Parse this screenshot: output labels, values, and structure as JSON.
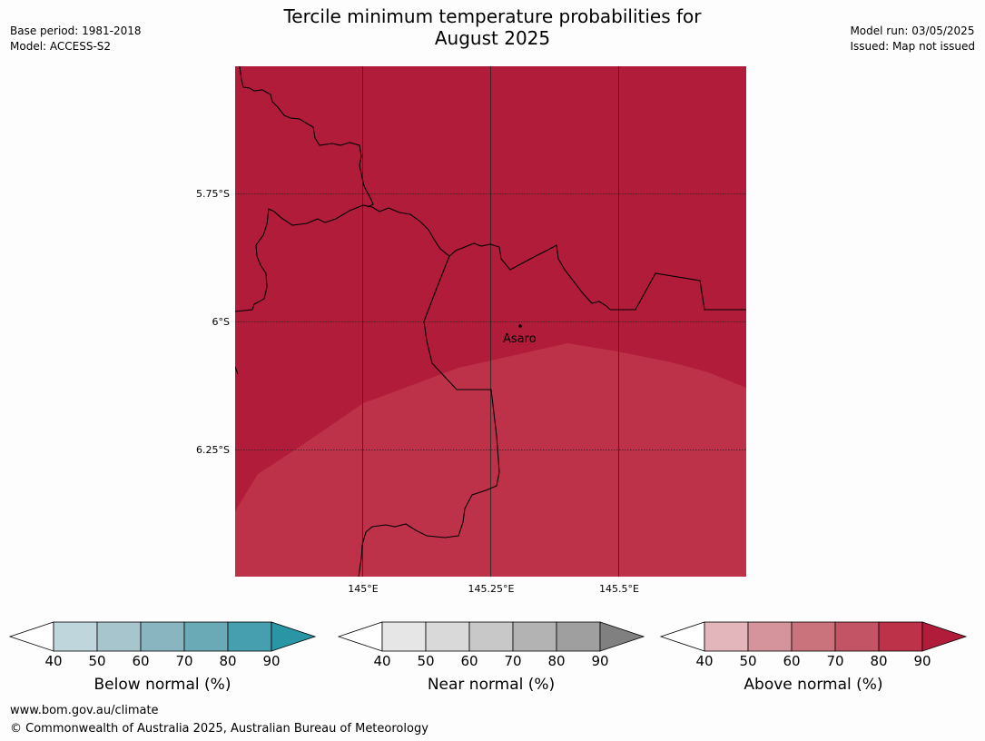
{
  "title_line1": "Tercile minimum temperature probabilities for",
  "title_line2": "August 2025",
  "meta_left": [
    "Base period: 1981-2018",
    "Model: ACCESS-S2"
  ],
  "meta_right": [
    "Model run: 03/05/2025",
    "Issued: Map not issued"
  ],
  "map": {
    "lat_ticks": [
      "5.75°S",
      "6°S",
      "6.25°S"
    ],
    "lon_ticks": [
      "145°E",
      "145.25°E",
      "145.5°E"
    ],
    "place": "Asaro",
    "colors": {
      "dark_fill": "#b01c3a",
      "light_fill": "#bd3249",
      "border": "#000000"
    }
  },
  "colorbars": [
    {
      "label": "Below normal (%)",
      "ticks": [
        "40",
        "50",
        "60",
        "70",
        "80",
        "90"
      ],
      "colors": [
        "#ffffff",
        "#bfd6dc",
        "#a6c5cc",
        "#88b5c0",
        "#6aaab7",
        "#469fae",
        "#2a95a5"
      ]
    },
    {
      "label": "Near normal (%)",
      "ticks": [
        "40",
        "50",
        "60",
        "70",
        "80",
        "90"
      ],
      "colors": [
        "#ffffff",
        "#e6e6e6",
        "#d9d9d9",
        "#c8c8c8",
        "#b3b3b3",
        "#9f9f9f",
        "#808080"
      ]
    },
    {
      "label": "Above normal (%)",
      "ticks": [
        "40",
        "50",
        "60",
        "70",
        "80",
        "90"
      ],
      "colors": [
        "#ffffff",
        "#e2b6bb",
        "#d5949c",
        "#cb737d",
        "#c25465",
        "#bd3249",
        "#b01c3a"
      ]
    }
  ],
  "footer": [
    "www.bom.gov.au/climate",
    "© Commonwealth of Australia 2025, Australian Bureau of Meteorology"
  ]
}
